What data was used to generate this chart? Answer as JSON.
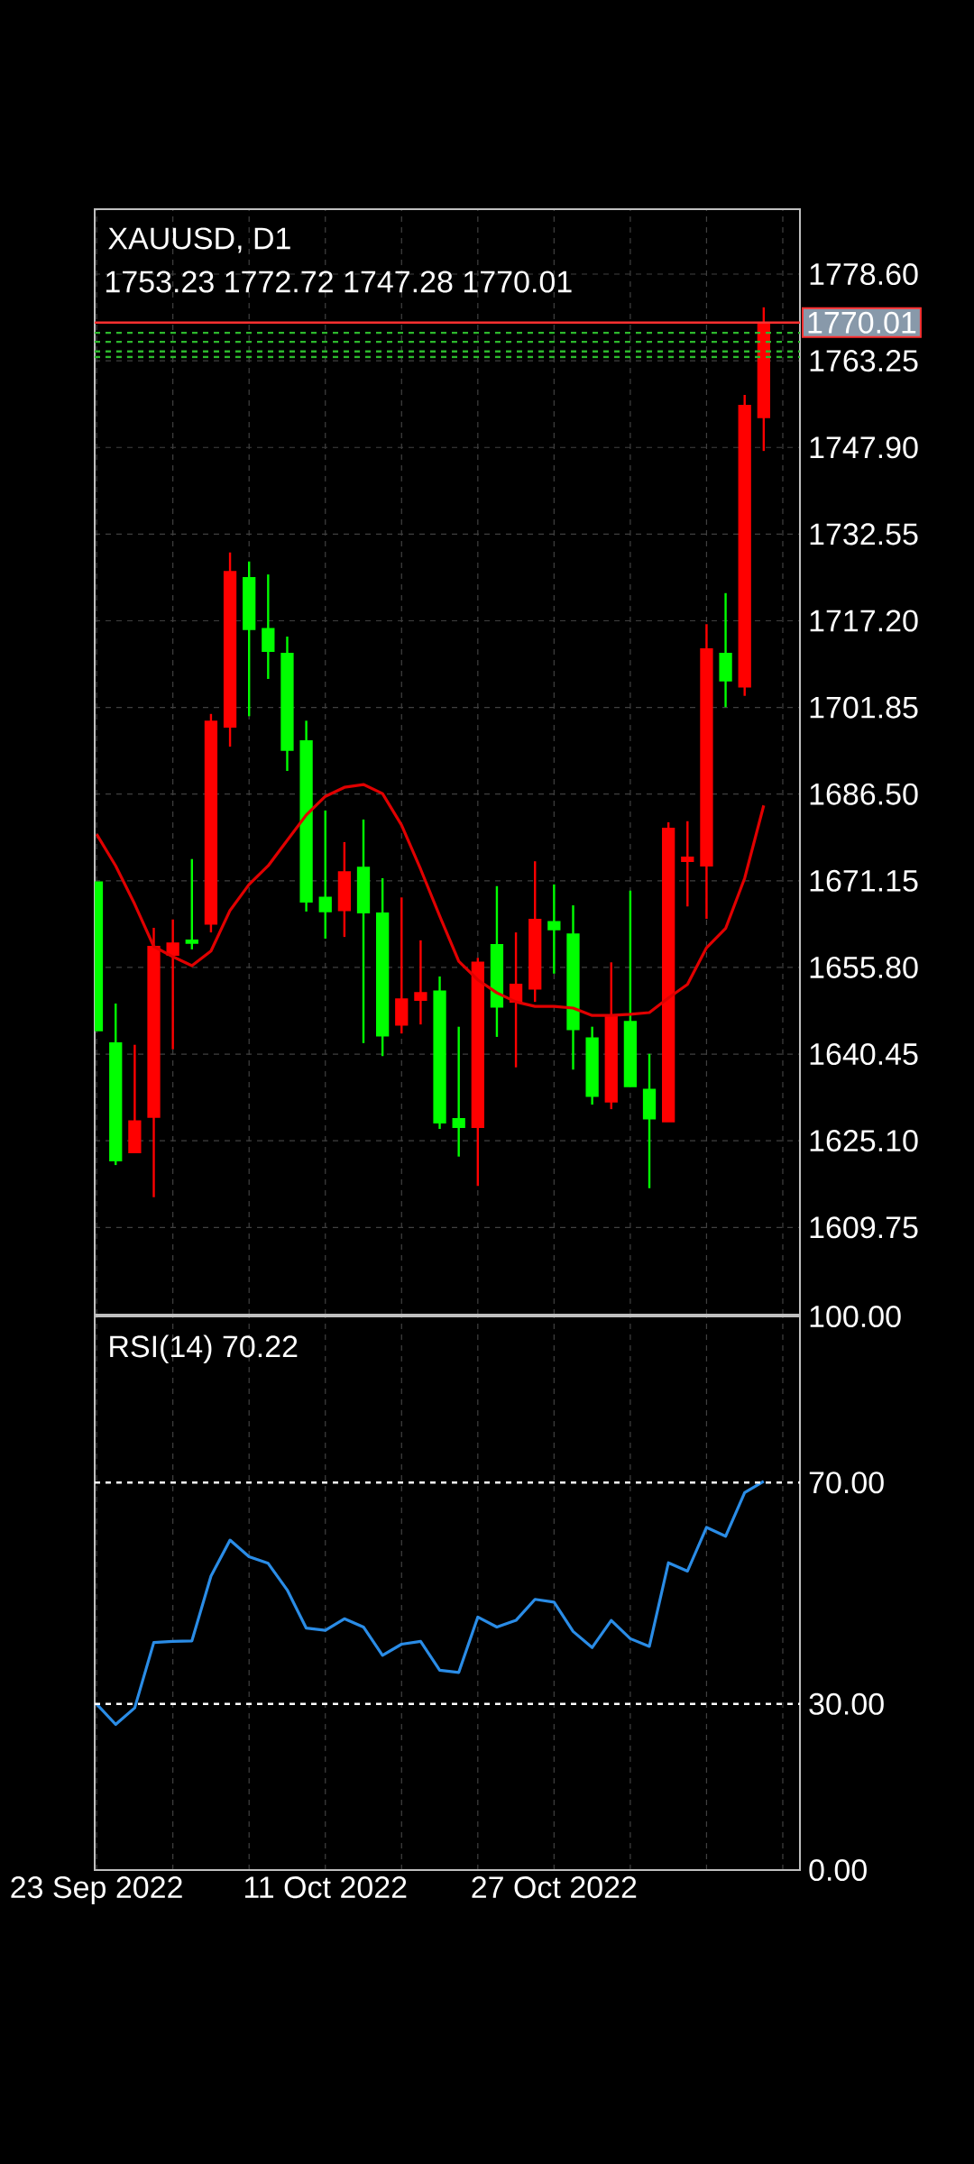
{
  "chart_data": [
    {
      "type": "candlestick",
      "title": "XAUUSD, D1",
      "subtitle": "1753.23 1772.72 1747.28 1770.01",
      "categories": [
        null,
        null,
        null,
        null,
        null,
        null,
        null,
        null,
        null,
        null,
        null,
        null,
        null,
        null,
        null,
        null,
        null,
        null,
        null,
        null,
        null,
        null,
        null,
        null,
        null,
        null,
        null,
        null,
        null,
        null,
        null,
        null,
        null,
        null,
        null,
        null
      ],
      "ohlc": [
        [
          1670.9,
          1670.9,
          1644.6,
          1644.6
        ],
        [
          1642.4,
          1649.4,
          1620.8,
          1621.6
        ],
        [
          1623.0,
          1642.1,
          1623.0,
          1628.6
        ],
        [
          1629.3,
          1662.8,
          1615.1,
          1659.5
        ],
        [
          1658.0,
          1664.3,
          1641.3,
          1660.1
        ],
        [
          1660.6,
          1675.0,
          1659.0,
          1660.1
        ],
        [
          1663.5,
          1700.7,
          1662.0,
          1699.4
        ],
        [
          1698.4,
          1729.3,
          1694.9,
          1725.9
        ],
        [
          1724.8,
          1727.7,
          1700.3,
          1715.7
        ],
        [
          1715.8,
          1725.4,
          1706.9,
          1711.8
        ],
        [
          1711.4,
          1714.4,
          1690.6,
          1694.3
        ],
        [
          1695.9,
          1699.5,
          1665.7,
          1667.4
        ],
        [
          1668.2,
          1683.6,
          1660.9,
          1665.7
        ],
        [
          1665.9,
          1678.0,
          1661.2,
          1672.7
        ],
        [
          1673.5,
          1682.0,
          1642.4,
          1665.5
        ],
        [
          1665.4,
          1671.6,
          1640.1,
          1643.7
        ],
        [
          1645.6,
          1668.2,
          1644.1,
          1650.2
        ],
        [
          1650.0,
          1660.6,
          1645.7,
          1651.3
        ],
        [
          1651.6,
          1654.2,
          1627.2,
          1628.3
        ],
        [
          1629.0,
          1645.3,
          1622.3,
          1627.5
        ],
        [
          1627.5,
          1657.5,
          1617.1,
          1656.7
        ],
        [
          1659.8,
          1670.2,
          1643.5,
          1648.8
        ],
        [
          1649.7,
          1662.0,
          1638.1,
          1652.8
        ],
        [
          1652.0,
          1674.6,
          1649.7,
          1664.3
        ],
        [
          1663.9,
          1670.5,
          1654.7,
          1662.5
        ],
        [
          1661.7,
          1666.8,
          1637.7,
          1644.8
        ],
        [
          1643.3,
          1645.3,
          1631.5,
          1633.0
        ],
        [
          1632.0,
          1656.7,
          1630.7,
          1647.2
        ],
        [
          1646.2,
          1669.4,
          1634.7,
          1634.7
        ],
        [
          1634.2,
          1640.5,
          1616.7,
          1629.0
        ],
        [
          1628.5,
          1681.5,
          1628.5,
          1680.4
        ],
        [
          1674.6,
          1681.7,
          1666.6,
          1675.3
        ],
        [
          1673.8,
          1716.6,
          1664.4,
          1712.2
        ],
        [
          1711.4,
          1722.1,
          1701.9,
          1706.6
        ],
        [
          1705.5,
          1757.2,
          1703.9,
          1755.3
        ],
        [
          1753.23,
          1772.72,
          1747.28,
          1770.01
        ]
      ],
      "colors": [
        "#00ff00",
        "#00ff00",
        "#ff0000",
        "#ff0000",
        "#ff0000",
        "#00ff00",
        "#ff0000",
        "#ff0000",
        "#00ff00",
        "#00ff00",
        "#00ff00",
        "#00ff00",
        "#00ff00",
        "#ff0000",
        "#00ff00",
        "#00ff00",
        "#ff0000",
        "#ff0000",
        "#00ff00",
        "#00ff00",
        "#ff0000",
        "#00ff00",
        "#ff0000",
        "#ff0000",
        "#00ff00",
        "#00ff00",
        "#00ff00",
        "#ff0000",
        "#00ff00",
        "#00ff00",
        "#ff0000",
        "#ff0000",
        "#ff0000",
        "#00ff00",
        "#ff0000",
        "#ff0000"
      ],
      "series": [
        {
          "type": "line",
          "color": "#e00000",
          "values": [
            1679.4,
            1673.8,
            1667.0,
            1659.5,
            1657.7,
            1656.1,
            1658.7,
            1665.9,
            1670.5,
            1673.8,
            1678.3,
            1682.8,
            1686.1,
            1687.7,
            1688.2,
            1686.6,
            1681.0,
            1673.2,
            1664.9,
            1656.9,
            1653.6,
            1651.3,
            1649.7,
            1648.9,
            1648.9,
            1648.6,
            1647.3,
            1647.3,
            1647.5,
            1647.8,
            1650.4,
            1652.8,
            1659.3,
            1662.7,
            1671.6,
            1684.5
          ]
        }
      ],
      "ylim": [
        1594.3,
        1790.1
      ],
      "yticks": [
        {
          "value": 1609.75,
          "label": "1609.75"
        },
        {
          "value": 1625.1,
          "label": "1625.10"
        },
        {
          "value": 1640.45,
          "label": "1640.45"
        },
        {
          "value": 1655.8,
          "label": "1655.80"
        },
        {
          "value": 1671.15,
          "label": "1671.15"
        },
        {
          "value": 1686.5,
          "label": "1686.50"
        },
        {
          "value": 1701.85,
          "label": "1701.85"
        },
        {
          "value": 1717.2,
          "label": "1717.20"
        },
        {
          "value": 1732.55,
          "label": "1732.55"
        },
        {
          "value": 1747.9,
          "label": "1747.90"
        },
        {
          "value": 1763.25,
          "label": "1763.25"
        },
        {
          "value": 1778.6,
          "label": "1778.60"
        }
      ],
      "grid": true,
      "tick_labels": "y",
      "ref_lines": [
        {
          "axis": "y",
          "value": 1768.2,
          "color": "#2db82d",
          "line_style": "dashed"
        },
        {
          "axis": "y",
          "value": 1766.6,
          "color": "#2db82d",
          "line_style": "dashed"
        },
        {
          "axis": "y",
          "value": 1764.9,
          "color": "#2db82d",
          "line_style": "dashed"
        },
        {
          "axis": "y",
          "value": 1763.9,
          "color": "#2db82d",
          "line_style": "dashed"
        },
        {
          "axis": "y",
          "value": 1770.01,
          "label": "1770.01",
          "color": "#ff3030",
          "line_style": "solid"
        }
      ]
    },
    {
      "type": "line",
      "title": "RSI(14) 70.22",
      "categories": [
        "23 Sep 2022",
        null,
        null,
        null,
        null,
        null,
        null,
        null,
        null,
        null,
        null,
        null,
        "11 Oct 2022",
        null,
        null,
        null,
        null,
        null,
        null,
        null,
        null,
        null,
        null,
        null,
        "27 Oct 2022",
        null,
        null,
        null,
        null,
        null,
        null,
        null,
        null,
        null,
        null,
        null
      ],
      "series": [
        {
          "color": "#2a8ce6",
          "values": [
            30.0,
            26.3,
            29.3,
            41.1,
            41.3,
            41.4,
            53.1,
            59.6,
            56.6,
            55.4,
            50.6,
            43.7,
            43.3,
            45.4,
            43.9,
            38.8,
            40.8,
            41.3,
            36.1,
            35.7,
            45.7,
            43.9,
            45.1,
            48.9,
            48.4,
            43.1,
            40.2,
            45.1,
            41.8,
            40.4,
            55.5,
            54.0,
            61.9,
            60.3,
            68.2,
            70.22
          ]
        }
      ],
      "ylim": [
        0,
        100
      ],
      "yticks": [
        {
          "value": 0,
          "label": "0.00"
        },
        {
          "value": 30,
          "label": "30.00"
        },
        {
          "value": 70,
          "label": "70.00"
        },
        {
          "value": 100,
          "label": "100.00"
        }
      ],
      "grid": "x",
      "ref_lines": [
        {
          "axis": "y",
          "value": 70,
          "color": "#ffffff",
          "line_style": "dashed"
        },
        {
          "axis": "y",
          "value": 30,
          "color": "#ffffff",
          "line_style": "dashed"
        }
      ]
    }
  ]
}
